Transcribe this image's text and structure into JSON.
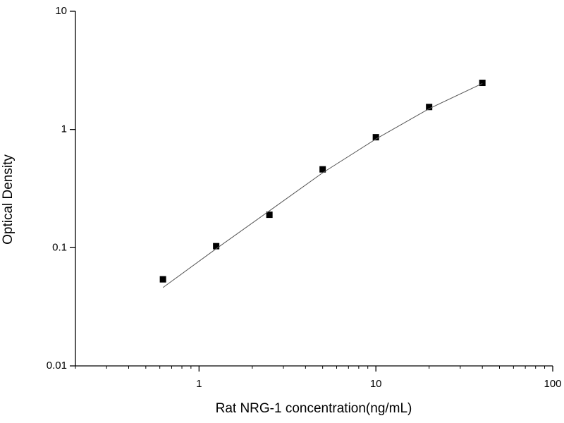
{
  "chart_data": {
    "type": "scatter",
    "xlabel": "Rat NRG-1 concentration(ng/mL)",
    "ylabel": "Optical Density",
    "xscale": "log",
    "yscale": "log",
    "xlim": [
      0.2,
      100
    ],
    "ylim": [
      0.01,
      10
    ],
    "xticks": [
      1,
      10,
      100
    ],
    "xminorticks": [
      0.2,
      0.3,
      0.4,
      0.5,
      0.6,
      0.7,
      0.8,
      0.9,
      2,
      3,
      4,
      5,
      6,
      7,
      8,
      9,
      20,
      30,
      40,
      50,
      60,
      70,
      80,
      90
    ],
    "yticks": [
      0.01,
      0.1,
      1,
      10
    ],
    "series": [
      {
        "mode": "markers",
        "color": "#000000",
        "x": [
          0.625,
          1.25,
          2.5,
          5,
          10,
          20,
          40
        ],
        "values": [
          0.054,
          0.103,
          0.19,
          0.46,
          0.86,
          1.55,
          2.48
        ]
      },
      {
        "mode": "line",
        "color": "#555555",
        "x": [
          0.625,
          1.25,
          2.5,
          5,
          10,
          20,
          40
        ],
        "values": [
          0.046,
          0.098,
          0.205,
          0.43,
          0.83,
          1.5,
          2.45
        ]
      }
    ]
  }
}
